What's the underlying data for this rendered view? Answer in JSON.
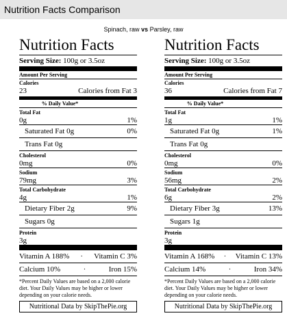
{
  "header": {
    "title": "Nutrition Facts Comparison",
    "left_item": "Spinach, raw",
    "vs": "vs",
    "right_item": "Parsley, raw"
  },
  "panels": [
    {
      "heading": "Nutrition Facts",
      "serving_label": "Serving Size:",
      "serving_value": "100g or 3.5oz",
      "amount_per_serving": "Amount Per Serving",
      "calories_label": "Calories",
      "calories_value": "23",
      "calories_fat_label": "Calories from Fat",
      "calories_fat_value": "3",
      "dv_header": "% Daily Value*",
      "nutrients": [
        {
          "label": "Total Fat",
          "amount": "0g",
          "dv": "1%",
          "sub": [
            {
              "label": "Saturated Fat",
              "amount": "0g",
              "dv": "0%"
            },
            {
              "label": "Trans Fat",
              "amount": "0g"
            }
          ]
        },
        {
          "label": "Cholesterol",
          "amount": "0mg",
          "dv": "0%"
        },
        {
          "label": "Sodium",
          "amount": "79mg",
          "dv": "3%"
        },
        {
          "label": "Total Carbohydrate",
          "amount": "4g",
          "dv": "1%",
          "sub": [
            {
              "label": "Dietary Fiber",
              "amount": "2g",
              "dv": "9%"
            },
            {
              "label": "Sugars",
              "amount": "0g"
            }
          ]
        },
        {
          "label": "Protein",
          "amount": "3g"
        }
      ],
      "vitamins": [
        [
          {
            "name": "Vitamin A",
            "value": "188%"
          },
          {
            "name": "Vitamin C",
            "value": "3%"
          }
        ],
        [
          {
            "name": "Calcium",
            "value": "10%"
          },
          {
            "name": "Iron",
            "value": "15%"
          }
        ]
      ],
      "footnote": "*Percent Daily Values are based on a 2,000 calorie diet. Your Daily Values may be higher or lower depending on your calorie needs.",
      "credit": "Nutritional Data by SkipThePie.org"
    },
    {
      "heading": "Nutrition Facts",
      "serving_label": "Serving Size:",
      "serving_value": "100g or 3.5oz",
      "amount_per_serving": "Amount Per Serving",
      "calories_label": "Calories",
      "calories_value": "36",
      "calories_fat_label": "Calories from Fat",
      "calories_fat_value": "7",
      "dv_header": "% Daily Value*",
      "nutrients": [
        {
          "label": "Total Fat",
          "amount": "1g",
          "dv": "1%",
          "sub": [
            {
              "label": "Saturated Fat",
              "amount": "0g",
              "dv": "1%"
            },
            {
              "label": "Trans Fat",
              "amount": "0g"
            }
          ]
        },
        {
          "label": "Cholesterol",
          "amount": "0mg",
          "dv": "0%"
        },
        {
          "label": "Sodium",
          "amount": "56mg",
          "dv": "2%"
        },
        {
          "label": "Total Carbohydrate",
          "amount": "6g",
          "dv": "2%",
          "sub": [
            {
              "label": "Dietary Fiber",
              "amount": "3g",
              "dv": "13%"
            },
            {
              "label": "Sugars",
              "amount": "1g"
            }
          ]
        },
        {
          "label": "Protein",
          "amount": "3g"
        }
      ],
      "vitamins": [
        [
          {
            "name": "Vitamin A",
            "value": "168%"
          },
          {
            "name": "Vitamin C",
            "value": "13%"
          }
        ],
        [
          {
            "name": "Calcium",
            "value": "14%"
          },
          {
            "name": "Iron",
            "value": "34%"
          }
        ]
      ],
      "footnote": "*Percent Daily Values are based on a 2,000 calorie diet. Your Daily Values may be higher or lower depending on your calorie needs.",
      "credit": "Nutritional Data by SkipThePie.org"
    }
  ]
}
